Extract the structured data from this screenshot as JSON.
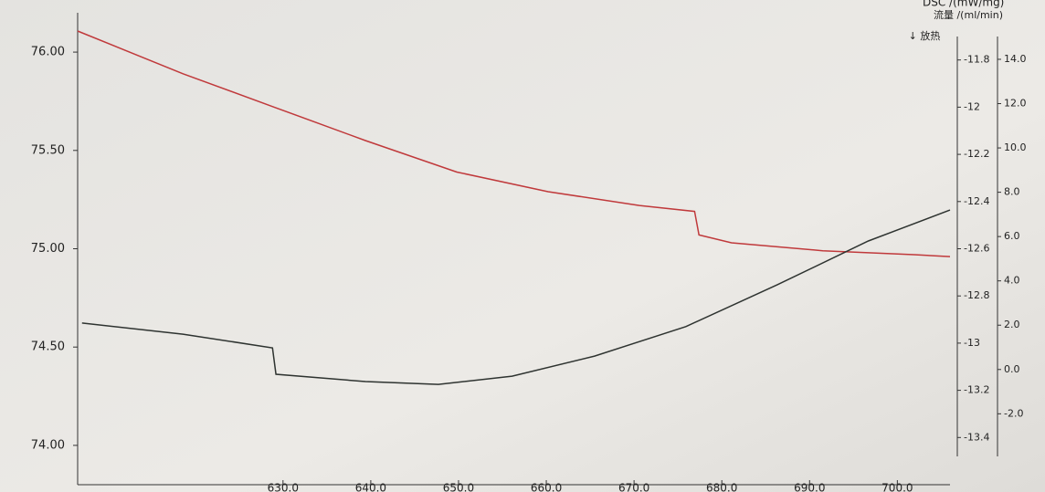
{
  "chart_data": {
    "type": "line",
    "y2_label": "DSC /(mW/mg)",
    "y3_label": "流量 /(ml/min)",
    "annotation": "↓ 放热",
    "xlim": [
      606.6,
      706.0
    ],
    "xticks": [
      {
        "value": 630,
        "label": "630.0"
      },
      {
        "value": 640,
        "label": "640.0"
      },
      {
        "value": 650,
        "label": "650.0"
      },
      {
        "value": 660,
        "label": "660.0"
      },
      {
        "value": 670,
        "label": "670.0"
      },
      {
        "value": 680,
        "label": "680.0"
      },
      {
        "value": 690,
        "label": "690.0"
      },
      {
        "value": 700,
        "label": "700.0"
      }
    ],
    "ylim": [
      73.8,
      76.2
    ],
    "yticks": [
      {
        "value": 74,
        "label": "74.00"
      },
      {
        "value": 74.5,
        "label": "74.50"
      },
      {
        "value": 75,
        "label": "75.00"
      },
      {
        "value": 75.5,
        "label": "75.50"
      },
      {
        "value": 76,
        "label": "76.00"
      }
    ],
    "y2lim": [
      -13.6,
      -11.6
    ],
    "y2ticks": [
      -13.4,
      -13.2,
      -13,
      -12.8,
      -12.6,
      -12.4,
      -12.2,
      -12,
      -11.8
    ],
    "y3lim": [
      -5.2,
      16.1
    ],
    "y3ticks": [
      {
        "value": -2,
        "label": "-2.0"
      },
      {
        "value": 0,
        "label": "0.0"
      },
      {
        "value": 2,
        "label": "2.0"
      },
      {
        "value": 4,
        "label": "4.0"
      },
      {
        "value": 6,
        "label": "6.0"
      },
      {
        "value": 8,
        "label": "8.0"
      },
      {
        "value": 10,
        "label": "10.0"
      },
      {
        "value": 12,
        "label": "12.0"
      },
      {
        "value": 14,
        "label": "14.0"
      }
    ],
    "series": [
      {
        "color": "#c0393b",
        "axis": "y",
        "x": [
          606.6,
          618.6,
          629.0,
          639.4,
          649.8,
          660.2,
          670.6,
          676.9,
          677.4,
          681.1,
          691.5,
          701.9,
          706.0
        ],
        "values": [
          76.107,
          75.89,
          75.72,
          75.55,
          75.39,
          75.29,
          75.22,
          75.19,
          75.07,
          75.03,
          74.99,
          74.97,
          74.96
        ]
      },
      {
        "color": "#2e3330",
        "axis": "y2",
        "x": [
          607.1,
          618.6,
          628.8,
          629.2,
          639.4,
          647.7,
          656.1,
          665.5,
          675.9,
          686.3,
          696.7,
          706.0
        ],
        "values": [
          -12.915,
          -12.962,
          -13.02,
          -13.132,
          -13.163,
          -13.175,
          -13.14,
          -13.055,
          -12.93,
          -12.753,
          -12.567,
          -12.436
        ]
      }
    ]
  }
}
